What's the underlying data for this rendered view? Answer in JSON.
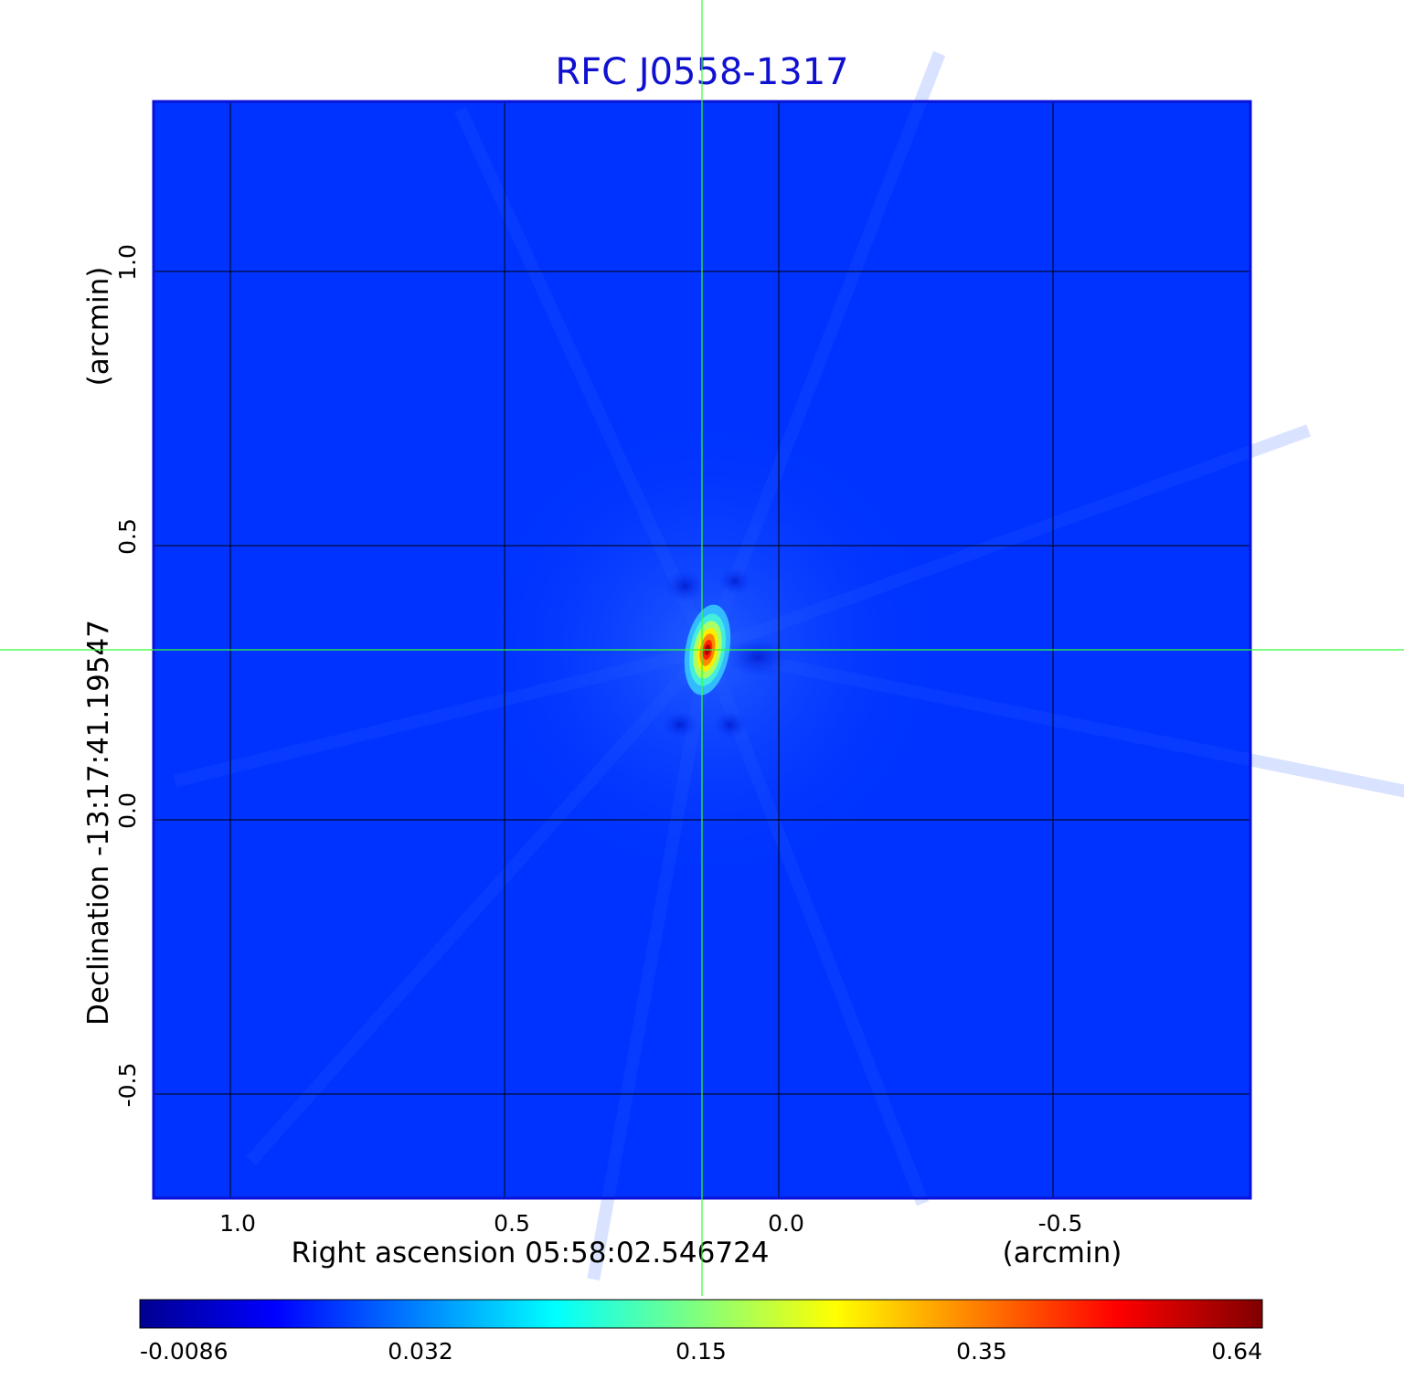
{
  "chart_data": {
    "type": "heatmap",
    "title": "RFC J0558-1317",
    "xlabel": "Right ascension  05:58:02.546724",
    "xunit": "(arcmin)",
    "ylabel": "Declination  -13:17:41.19547",
    "yunit": "(arcmin)",
    "x_ticks": [
      1.0,
      0.5,
      0.0,
      -0.5
    ],
    "x_tick_labels": [
      "1.0",
      "0.5",
      "0.0",
      "-0.5"
    ],
    "y_ticks": [
      1.0,
      0.5,
      0.0,
      -0.5
    ],
    "y_tick_labels": [
      "1.0",
      "0.5",
      "0.0",
      "-0.5"
    ],
    "xlim": [
      1.14,
      -0.86
    ],
    "ylim": [
      -0.69,
      1.31
    ],
    "grid": true,
    "crosshair": {
      "x": 0.14,
      "y": 0.31
    },
    "source_peak": {
      "x": 0.13,
      "y": 0.31,
      "value": 0.64
    },
    "colorbar": {
      "tick_labels": [
        "-0.0086",
        "0.032",
        "0.15",
        "0.35",
        "0.64"
      ],
      "min": -0.0086,
      "max": 0.64,
      "colormap": "jet"
    },
    "colors": {
      "title": "#1010d0",
      "background": "#0033ff",
      "grid": "#000000",
      "crosshair": "#33ff33",
      "frame": "#0a10d8"
    }
  }
}
